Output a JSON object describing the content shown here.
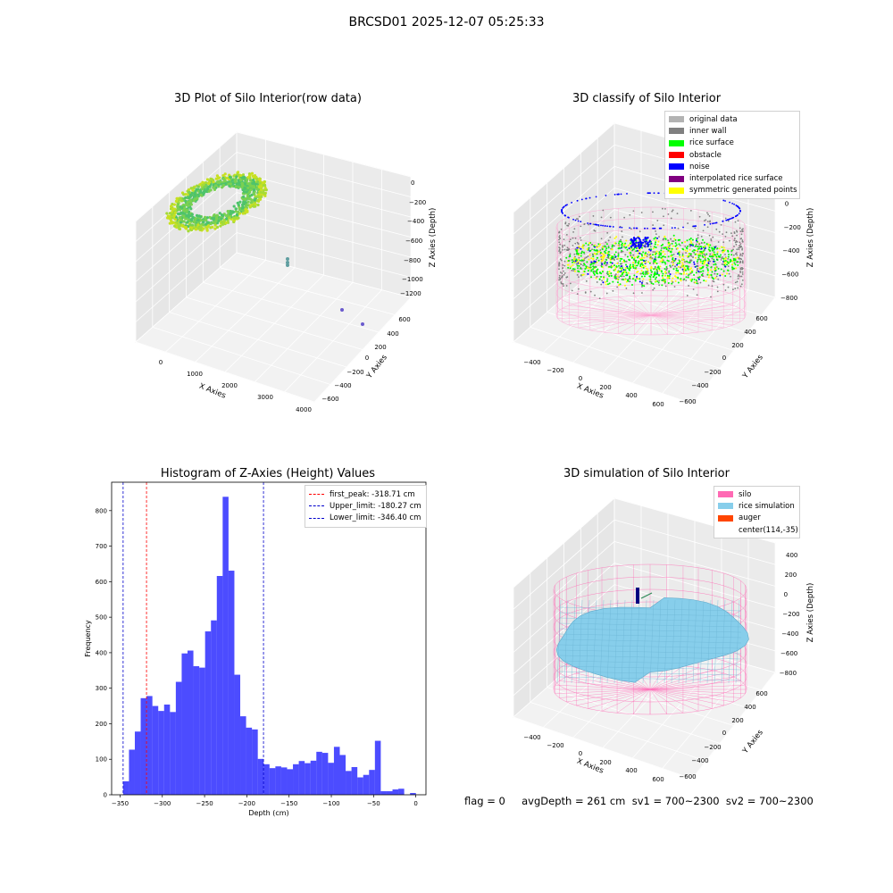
{
  "suptitle": "BRCSD01 2025-12-07 05:25:33",
  "status_line": "flag = 0     avgDepth = 261 cm  sv1 = 700~2300  sv2 = 700~2300",
  "chart_data": [
    {
      "type": "scatter",
      "title": "3D Plot of Silo Interior(row data)",
      "xlabel": "X Axies",
      "ylabel": "Y Axies",
      "zlabel": "Z Axies (Depth)",
      "xticks": [
        "0",
        "1000",
        "2000",
        "3000",
        "4000"
      ],
      "yticks": [
        "600",
        "400",
        "200",
        "0",
        "−200",
        "−400",
        "−600"
      ],
      "zticks": [
        "0",
        "−200",
        "−400",
        "−600",
        "−800",
        "−1000",
        "−1200"
      ],
      "xlim": [
        -500,
        4000
      ],
      "ylim": [
        -650,
        650
      ],
      "zlim": [
        -1300,
        100
      ],
      "colormap": "viridis (by depth)"
    },
    {
      "type": "scatter",
      "title": "3D classify of Silo Interior",
      "xlabel": "X Axies",
      "ylabel": "Y Axies",
      "zlabel": "Z Axies (Depth)",
      "xticks": [
        "−400",
        "−200",
        "0",
        "200",
        "400",
        "600"
      ],
      "yticks": [
        "600",
        "400",
        "200",
        "0",
        "−200",
        "−400",
        "−600"
      ],
      "zticks": [
        "200",
        "0",
        "−200",
        "−400",
        "−600",
        "−800"
      ],
      "xlim": [
        -550,
        750
      ],
      "ylim": [
        -650,
        650
      ],
      "zlim": [
        -900,
        300
      ],
      "legend": [
        {
          "label": "original data",
          "color": "#b3b3b3"
        },
        {
          "label": "inner wall",
          "color": "#808080"
        },
        {
          "label": "rice surface",
          "color": "#00ff00"
        },
        {
          "label": "obstacle",
          "color": "#ff0000"
        },
        {
          "label": "noise",
          "color": "#0000ff"
        },
        {
          "label": "interpolated rice surface",
          "color": "#800080"
        },
        {
          "label": "symmetric generated points",
          "color": "#ffff00"
        }
      ]
    },
    {
      "type": "bar",
      "title": "Histogram of Z-Axies (Height) Values",
      "xlabel": "Depth (cm)",
      "ylabel": "Frequency",
      "xlim": [
        -360,
        12
      ],
      "ylim": [
        0,
        880
      ],
      "xticks": [
        -350,
        -300,
        -250,
        -200,
        -150,
        -100,
        -50,
        0
      ],
      "yticks": [
        0,
        100,
        200,
        300,
        400,
        500,
        600,
        700,
        800
      ],
      "bin_start": -346.4,
      "bin_width": 6.93,
      "values": [
        38,
        127,
        178,
        272,
        278,
        250,
        236,
        254,
        233,
        318,
        398,
        406,
        362,
        358,
        460,
        491,
        616,
        839,
        631,
        338,
        221,
        189,
        184,
        101,
        86,
        75,
        80,
        77,
        72,
        86,
        95,
        89,
        96,
        121,
        118,
        90,
        135,
        112,
        67,
        78,
        49,
        56,
        70,
        152,
        10,
        10,
        15,
        17,
        0,
        5
      ],
      "bar_color": "#0000ff",
      "bar_opacity": 0.7,
      "vlines": [
        {
          "label": "first_peak: -318.71 cm",
          "x": -318.71,
          "color": "#ff0000"
        },
        {
          "label": "Upper_limit: -180.27 cm",
          "x": -180.27,
          "color": "#0000cc"
        },
        {
          "label": "Lower_limit: -346.40 cm",
          "x": -346.4,
          "color": "#0000cc"
        }
      ],
      "legend_placement": "top-right"
    },
    {
      "type": "surface",
      "title": "3D simulation of Silo Interior",
      "xlabel": "X Axies",
      "ylabel": "Y Axies",
      "zlabel": "Z Axies (Depth)",
      "xticks": [
        "−400",
        "−200",
        "0",
        "200",
        "400",
        "600"
      ],
      "yticks": [
        "600",
        "400",
        "200",
        "0",
        "−200",
        "−400",
        "−600"
      ],
      "zticks": [
        "400",
        "200",
        "0",
        "−200",
        "−400",
        "−600",
        "−800"
      ],
      "xlim": [
        -550,
        750
      ],
      "ylim": [
        -650,
        650
      ],
      "zlim": [
        -900,
        450
      ],
      "legend": [
        {
          "label": "silo",
          "color": "#ff69b4"
        },
        {
          "label": "rice simulation",
          "color": "#87ceeb"
        },
        {
          "label": "auger",
          "color": "#ff4500"
        },
        {
          "label": "center(114,-35)",
          "color": ""
        }
      ]
    }
  ]
}
